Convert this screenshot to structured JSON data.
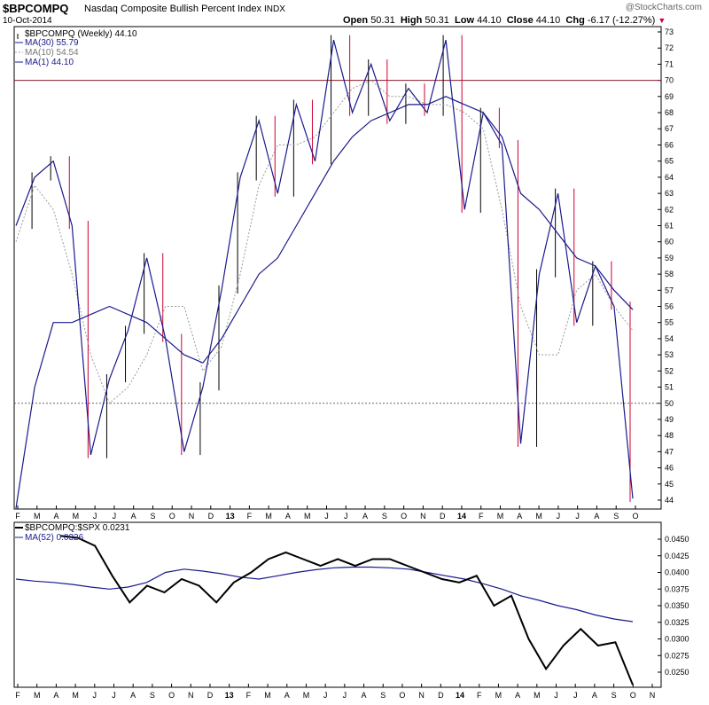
{
  "header": {
    "symbol": "$BPCOMPQ",
    "name": "Nasdaq Composite Bullish Percent Index",
    "exchange": "INDX",
    "date": "10-Oct-2014",
    "watermark": "@StockCharts.com",
    "quote": {
      "open_label": "Open",
      "open": "50.31",
      "high_label": "High",
      "high": "50.31",
      "low_label": "Low",
      "low": "44.10",
      "close_label": "Close",
      "close": "44.10",
      "chg_label": "Chg",
      "chg": "-6.17 (-12.27%)"
    }
  },
  "colors": {
    "up_bar": "#000000",
    "down_bar": "#cc0033",
    "ma30": "#1a1a8c",
    "ma10": "#9a9a9a",
    "ma1": "#1a1a8c",
    "ref_line_70": "#8b1a2e",
    "ref_line_50": "#666666",
    "ratio_line": "#000000",
    "ma52": "#1a1a8c"
  },
  "chart_data": [
    {
      "type": "line",
      "title": "$BPCOMPQ (Weekly) 44.10",
      "legend": [
        {
          "label": "$BPCOMPQ (Weekly) 44.10",
          "style": "price"
        },
        {
          "label": "MA(30) 55.79",
          "style": "solid"
        },
        {
          "label": "MA(10) 54.54",
          "style": "dotted"
        },
        {
          "label": "MA(1) 44.10",
          "style": "solid"
        }
      ],
      "legend_position": "top-left",
      "ylim": [
        44,
        73
      ],
      "y_ticks": [
        "44",
        "45",
        "46",
        "47",
        "48",
        "49",
        "50",
        "51",
        "52",
        "53",
        "54",
        "55",
        "56",
        "57",
        "58",
        "59",
        "60",
        "61",
        "62",
        "63",
        "64",
        "65",
        "66",
        "67",
        "68",
        "69",
        "70",
        "71",
        "72",
        "73"
      ],
      "x_ticks": [
        "F",
        "M",
        "A",
        "M",
        "J",
        "J",
        "A",
        "S",
        "O",
        "N",
        "D",
        "13",
        "F",
        "M",
        "A",
        "M",
        "J",
        "J",
        "A",
        "S",
        "O",
        "N",
        "D",
        "14",
        "F",
        "M",
        "A",
        "M",
        "J",
        "J",
        "A",
        "S",
        "O"
      ],
      "reference_lines": [
        70,
        50
      ],
      "x": [
        "2012-01",
        "2012-02",
        "2012-03",
        "2012-04",
        "2012-05",
        "2012-06",
        "2012-07",
        "2012-08",
        "2012-09",
        "2012-10",
        "2012-11",
        "2012-12",
        "2013-01",
        "2013-02",
        "2013-03",
        "2013-04",
        "2013-05",
        "2013-06",
        "2013-07",
        "2013-08",
        "2013-09",
        "2013-10",
        "2013-11",
        "2013-12",
        "2014-01",
        "2014-02",
        "2014-03",
        "2014-04",
        "2014-05",
        "2014-06",
        "2014-07",
        "2014-08",
        "2014-09",
        "2014-10"
      ],
      "series": [
        {
          "name": "MA(1) 44.10",
          "values": [
            61,
            64,
            65,
            61,
            46.8,
            51.5,
            54.5,
            59,
            54,
            47,
            51,
            57,
            64,
            67.5,
            63,
            68.5,
            65,
            72.5,
            68,
            71,
            67.5,
            69.5,
            68,
            72.5,
            62,
            68,
            66,
            47.5,
            58,
            63,
            55,
            58.5,
            56,
            44.1
          ]
        },
        {
          "name": "MA(30) 55.79",
          "values": [
            43.5,
            51,
            55,
            55,
            55.5,
            56,
            55.5,
            55,
            54,
            53,
            52.5,
            54,
            56,
            58,
            59,
            61,
            63,
            65,
            66.5,
            67.5,
            68,
            68.5,
            68.5,
            69,
            68.5,
            68,
            66.5,
            63,
            62,
            60.5,
            59,
            58.5,
            57,
            55.8
          ]
        },
        {
          "name": "MA(10) 54.54",
          "values": [
            60,
            63.5,
            62,
            58,
            53,
            50,
            51,
            53,
            56,
            56,
            52,
            53.5,
            58,
            63.5,
            66,
            66,
            66.5,
            68,
            69.5,
            70,
            69,
            69,
            68.5,
            68.5,
            68,
            67,
            62,
            56,
            53,
            53,
            57,
            58,
            56,
            54.5
          ]
        }
      ]
    },
    {
      "type": "line",
      "title": "$BPCOMPQ:$SPX 0.0231",
      "legend": [
        {
          "label": "$BPCOMPQ:$SPX 0.0231",
          "style": "thick"
        },
        {
          "label": "MA(52) 0.0326",
          "style": "solid"
        }
      ],
      "legend_position": "top-left",
      "ylim": [
        0.023,
        0.046
      ],
      "y_ticks": [
        "0.0250",
        "0.0275",
        "0.0300",
        "0.0325",
        "0.0350",
        "0.0375",
        "0.0400",
        "0.0425",
        "0.0450"
      ],
      "x_ticks": [
        "F",
        "M",
        "A",
        "M",
        "J",
        "J",
        "A",
        "S",
        "O",
        "N",
        "D",
        "13",
        "F",
        "M",
        "A",
        "M",
        "J",
        "J",
        "A",
        "S",
        "O",
        "N",
        "D",
        "14",
        "F",
        "M",
        "A",
        "M",
        "J",
        "J",
        "A",
        "S",
        "O",
        "N"
      ],
      "x": [
        "2012-01",
        "2012-02",
        "2012-03",
        "2012-04",
        "2012-05",
        "2012-06",
        "2012-07",
        "2012-08",
        "2012-09",
        "2012-10",
        "2012-11",
        "2012-12",
        "2013-01",
        "2013-02",
        "2013-03",
        "2013-04",
        "2013-05",
        "2013-06",
        "2013-07",
        "2013-08",
        "2013-09",
        "2013-10",
        "2013-11",
        "2013-12",
        "2014-01",
        "2014-02",
        "2014-03",
        "2014-04",
        "2014-05",
        "2014-06",
        "2014-07",
        "2014-08",
        "2014-09",
        "2014-10"
      ],
      "series": [
        {
          "name": "$BPCOMPQ:$SPX 0.0231",
          "values": [
            0.0455,
            0.0452,
            0.044,
            0.0395,
            0.0355,
            0.038,
            0.037,
            0.039,
            0.038,
            0.0355,
            0.0385,
            0.04,
            0.042,
            0.043,
            0.042,
            0.041,
            0.042,
            0.041,
            0.042,
            0.042,
            0.041,
            0.04,
            0.039,
            0.0385,
            0.0395,
            0.035,
            0.0365,
            0.03,
            0.0255,
            0.029,
            0.0315,
            0.029,
            0.0295,
            0.0231
          ]
        },
        {
          "name": "MA(52) 0.0326",
          "values": [
            0.039,
            0.0387,
            0.0385,
            0.0382,
            0.0378,
            0.0375,
            0.0378,
            0.0385,
            0.04,
            0.0405,
            0.0402,
            0.0398,
            0.0393,
            0.039,
            0.0395,
            0.04,
            0.0404,
            0.0407,
            0.0408,
            0.0408,
            0.0407,
            0.0405,
            0.04,
            0.0395,
            0.039,
            0.0383,
            0.0375,
            0.0365,
            0.0358,
            0.035,
            0.0344,
            0.0336,
            0.033,
            0.0326
          ]
        }
      ]
    }
  ]
}
